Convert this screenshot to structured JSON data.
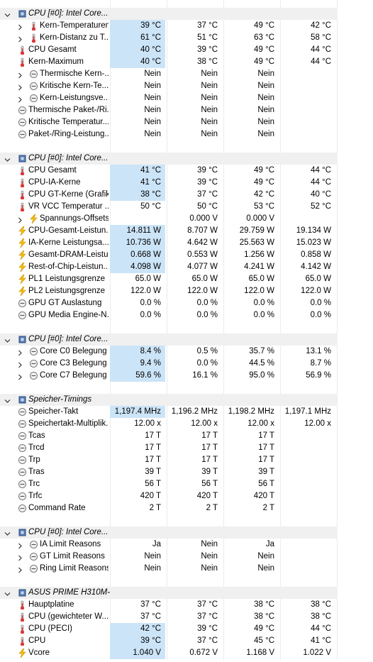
{
  "groups": [
    {
      "title": "CPU [#0]: Intel Core...",
      "rows": [
        {
          "label": "Kern-Temperaturen",
          "values": [
            "39 °C",
            "37 °C",
            "49 °C",
            "42 °C"
          ],
          "icon": "thermometer",
          "expandable": true,
          "highlighted": true
        },
        {
          "label": "Kern-Distanz zu T...",
          "values": [
            "61 °C",
            "51 °C",
            "63 °C",
            "58 °C"
          ],
          "icon": "thermometer",
          "expandable": true,
          "highlighted": true
        },
        {
          "label": "CPU Gesamt",
          "values": [
            "40 °C",
            "39 °C",
            "49 °C",
            "44 °C"
          ],
          "icon": "thermometer",
          "expandable": false,
          "highlighted": true
        },
        {
          "label": "Kern-Maximum",
          "values": [
            "40 °C",
            "38 °C",
            "49 °C",
            "44 °C"
          ],
          "icon": "thermometer",
          "expandable": false,
          "highlighted": true
        },
        {
          "label": "Thermische Kern-...",
          "values": [
            "Nein",
            "Nein",
            "Nein",
            null
          ],
          "icon": "clock",
          "expandable": true,
          "highlighted": false
        },
        {
          "label": "Kritische Kern-Te...",
          "values": [
            "Nein",
            "Nein",
            "Nein",
            null
          ],
          "icon": "clock",
          "expandable": true,
          "highlighted": false
        },
        {
          "label": "Kern-Leistungsve...",
          "values": [
            "Nein",
            "Nein",
            "Nein",
            null
          ],
          "icon": "clock",
          "expandable": true,
          "highlighted": false
        },
        {
          "label": "Thermische Paket-/Ri...",
          "values": [
            "Nein",
            "Nein",
            "Nein",
            null
          ],
          "icon": "clock",
          "expandable": false,
          "highlighted": false
        },
        {
          "label": "Kritische Temperatur...",
          "values": [
            "Nein",
            "Nein",
            "Nein",
            null
          ],
          "icon": "clock",
          "expandable": false,
          "highlighted": false
        },
        {
          "label": "Paket-/Ring-Leistung...",
          "values": [
            "Nein",
            "Nein",
            "Nein",
            null
          ],
          "icon": "clock",
          "expandable": false,
          "highlighted": false
        }
      ]
    },
    {
      "title": "CPU [#0]: Intel Core...",
      "rows": [
        {
          "label": "CPU Gesamt",
          "values": [
            "41 °C",
            "39 °C",
            "49 °C",
            "44 °C"
          ],
          "icon": "thermometer",
          "expandable": false,
          "highlighted": true
        },
        {
          "label": "CPU-IA-Kerne",
          "values": [
            "41 °C",
            "39 °C",
            "49 °C",
            "44 °C"
          ],
          "icon": "thermometer",
          "expandable": false,
          "highlighted": true
        },
        {
          "label": "CPU GT-Kerne (Grafik)",
          "values": [
            "38 °C",
            "37 °C",
            "42 °C",
            "40 °C"
          ],
          "icon": "thermometer",
          "expandable": false,
          "highlighted": true
        },
        {
          "label": "VR VCC Temperatur ...",
          "values": [
            "50 °C",
            "50 °C",
            "53 °C",
            "52 °C"
          ],
          "icon": "thermometer",
          "expandable": false,
          "highlighted": false
        },
        {
          "label": "Spannungs-Offsets",
          "values": [
            null,
            "0.000 V",
            "0.000 V",
            null
          ],
          "icon": "bolt",
          "expandable": true,
          "highlighted": false
        },
        {
          "label": "CPU-Gesamt-Leistun...",
          "values": [
            "14.811 W",
            "8.707 W",
            "29.759 W",
            "19.134 W"
          ],
          "icon": "bolt",
          "expandable": false,
          "highlighted": true
        },
        {
          "label": "IA-Kerne Leistungsa...",
          "values": [
            "10.736 W",
            "4.642 W",
            "25.563 W",
            "15.023 W"
          ],
          "icon": "bolt",
          "expandable": false,
          "highlighted": true
        },
        {
          "label": "Gesamt-DRAM-Leistung",
          "values": [
            "0.668 W",
            "0.553 W",
            "1.256 W",
            "0.858 W"
          ],
          "icon": "bolt",
          "expandable": false,
          "highlighted": true
        },
        {
          "label": "Rest-of-Chip-Leistun...",
          "values": [
            "4.098 W",
            "4.077 W",
            "4.241 W",
            "4.142 W"
          ],
          "icon": "bolt",
          "expandable": false,
          "highlighted": true
        },
        {
          "label": "PL1 Leistungsgrenze",
          "values": [
            "65.0 W",
            "65.0 W",
            "65.0 W",
            "65.0 W"
          ],
          "icon": "bolt",
          "expandable": false,
          "highlighted": false
        },
        {
          "label": "PL2 Leistungsgrenze",
          "values": [
            "122.0 W",
            "122.0 W",
            "122.0 W",
            "122.0 W"
          ],
          "icon": "bolt",
          "expandable": false,
          "highlighted": false
        },
        {
          "label": "GPU GT Auslastung",
          "values": [
            "0.0 %",
            "0.0 %",
            "0.0 %",
            "0.0 %"
          ],
          "icon": "clock",
          "expandable": false,
          "highlighted": false
        },
        {
          "label": "GPU Media Engine-N...",
          "values": [
            "0.0 %",
            "0.0 %",
            "0.0 %",
            "0.0 %"
          ],
          "icon": "clock",
          "expandable": false,
          "highlighted": false
        }
      ]
    },
    {
      "title": "CPU [#0]: Intel Core...",
      "rows": [
        {
          "label": "Core C0 Belegung",
          "values": [
            "8.4 %",
            "0.5 %",
            "35.7 %",
            "13.1 %"
          ],
          "icon": "clock",
          "expandable": true,
          "highlighted": true
        },
        {
          "label": "Core C3 Belegung",
          "values": [
            "9.4 %",
            "0.0 %",
            "44.5 %",
            "8.7 %"
          ],
          "icon": "clock",
          "expandable": true,
          "highlighted": true
        },
        {
          "label": "Core C7 Belegung",
          "values": [
            "59.6 %",
            "16.1 %",
            "95.0 %",
            "56.9 %"
          ],
          "icon": "clock",
          "expandable": true,
          "highlighted": true
        }
      ]
    },
    {
      "title": "Speicher-Timings",
      "rows": [
        {
          "label": "Speicher-Takt",
          "values": [
            "1,197.4 MHz",
            "1,196.2 MHz",
            "1,198.2 MHz",
            "1,197.1 MHz"
          ],
          "icon": "clock",
          "expandable": false,
          "highlighted": true
        },
        {
          "label": "Speichertakt-Multiplik...",
          "values": [
            "12.00 x",
            "12.00 x",
            "12.00 x",
            "12.00 x"
          ],
          "icon": "clock",
          "expandable": false,
          "highlighted": false
        },
        {
          "label": "Tcas",
          "values": [
            "17 T",
            "17 T",
            "17 T",
            null
          ],
          "icon": "clock",
          "expandable": false,
          "highlighted": false
        },
        {
          "label": "Trcd",
          "values": [
            "17 T",
            "17 T",
            "17 T",
            null
          ],
          "icon": "clock",
          "expandable": false,
          "highlighted": false
        },
        {
          "label": "Trp",
          "values": [
            "17 T",
            "17 T",
            "17 T",
            null
          ],
          "icon": "clock",
          "expandable": false,
          "highlighted": false
        },
        {
          "label": "Tras",
          "values": [
            "39 T",
            "39 T",
            "39 T",
            null
          ],
          "icon": "clock",
          "expandable": false,
          "highlighted": false
        },
        {
          "label": "Trc",
          "values": [
            "56 T",
            "56 T",
            "56 T",
            null
          ],
          "icon": "clock",
          "expandable": false,
          "highlighted": false
        },
        {
          "label": "Trfc",
          "values": [
            "420 T",
            "420 T",
            "420 T",
            null
          ],
          "icon": "clock",
          "expandable": false,
          "highlighted": false
        },
        {
          "label": "Command Rate",
          "values": [
            "2 T",
            "2 T",
            "2 T",
            null
          ],
          "icon": "clock",
          "expandable": false,
          "highlighted": false
        }
      ]
    },
    {
      "title": "CPU [#0]: Intel Core...",
      "rows": [
        {
          "label": "IA Limit Reasons",
          "values": [
            "Ja",
            "Nein",
            "Ja",
            null
          ],
          "icon": "clock",
          "expandable": true,
          "highlighted": false
        },
        {
          "label": "GT Limit Reasons",
          "values": [
            "Nein",
            "Nein",
            "Nein",
            null
          ],
          "icon": "clock",
          "expandable": true,
          "highlighted": false
        },
        {
          "label": "Ring Limit Reasons",
          "values": [
            "Nein",
            "Nein",
            "Nein",
            null
          ],
          "icon": "clock",
          "expandable": true,
          "highlighted": false
        }
      ]
    },
    {
      "title": "ASUS PRIME H310M-...",
      "rows": [
        {
          "label": "Hauptplatine",
          "values": [
            "37 °C",
            "37 °C",
            "38 °C",
            "38 °C"
          ],
          "icon": "thermometer",
          "expandable": false,
          "highlighted": false
        },
        {
          "label": "CPU (gewichteter W...",
          "values": [
            "37 °C",
            "37 °C",
            "38 °C",
            "38 °C"
          ],
          "icon": "thermometer",
          "expandable": false,
          "highlighted": false
        },
        {
          "label": "CPU (PECI)",
          "values": [
            "42 °C",
            "39 °C",
            "49 °C",
            "44 °C"
          ],
          "icon": "thermometer",
          "expandable": false,
          "highlighted": true
        },
        {
          "label": "CPU",
          "values": [
            "39 °C",
            "37 °C",
            "45 °C",
            "41 °C"
          ],
          "icon": "thermometer",
          "expandable": false,
          "highlighted": true
        },
        {
          "label": "Vcore",
          "values": [
            "1.040 V",
            "0.672 V",
            "1.168 V",
            "1.022 V"
          ],
          "icon": "bolt",
          "expandable": false,
          "highlighted": true
        }
      ]
    }
  ]
}
